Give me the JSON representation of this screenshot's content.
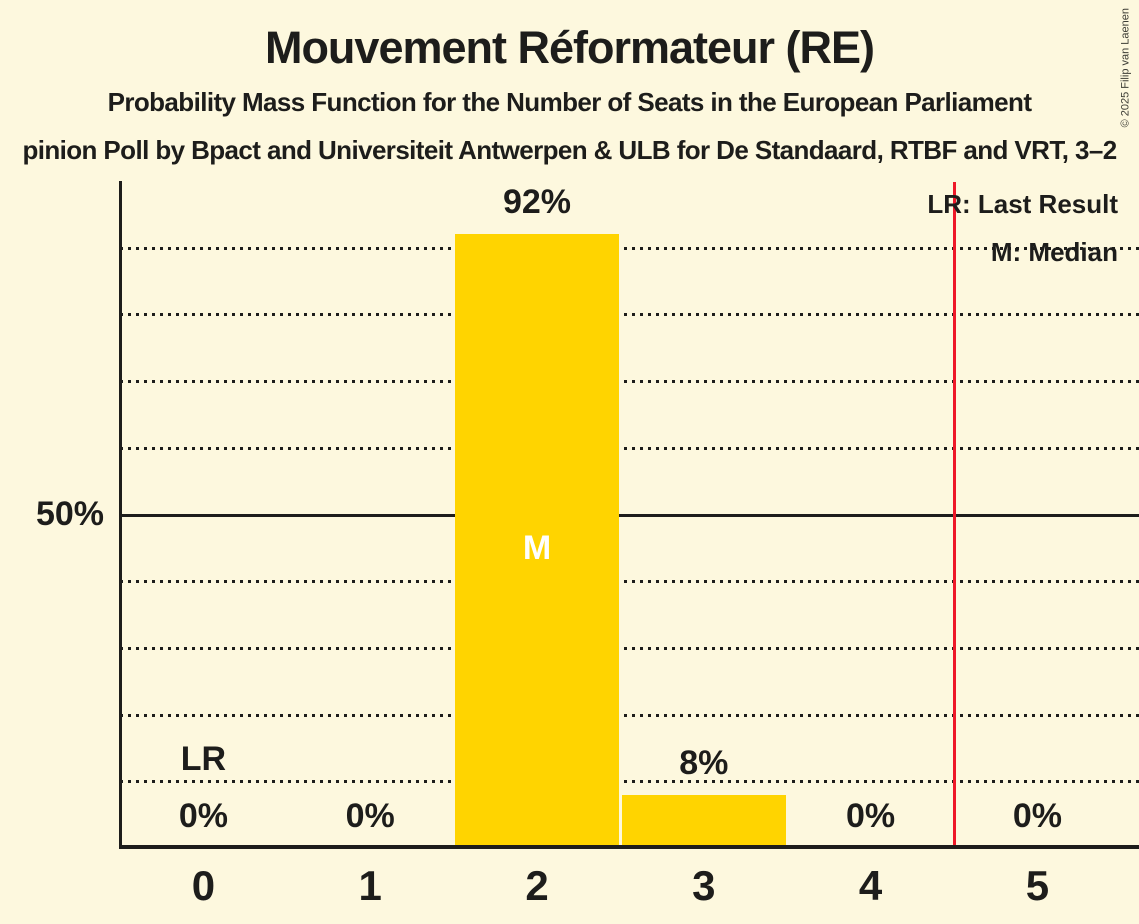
{
  "header": {
    "title": "Mouvement Réformateur (RE)",
    "subtitle": "Probability Mass Function for the Number of Seats in the European Parliament",
    "source_line": "pinion Poll by Bpact and Universiteit Antwerpen & ULB for De Standaard, RTBF and VRT, 3–2",
    "copyright": "© 2025 Filip van Laenen"
  },
  "legend": {
    "lr": "LR: Last Result",
    "median": "M: Median"
  },
  "colors": {
    "background": "#fdf8de",
    "bar": "#ffd400",
    "last_result_line": "#ee1828",
    "text": "#1d1d1b",
    "median_text": "#ffffff",
    "copyright_text": "#3c3c34"
  },
  "chart_data": {
    "type": "bar",
    "title": "Mouvement Réformateur (RE)",
    "categories": [
      "0",
      "1",
      "2",
      "3",
      "4",
      "5"
    ],
    "values": [
      0,
      0,
      92,
      8,
      0,
      0
    ],
    "bar_labels": [
      "0%",
      "0%",
      "92%",
      "8%",
      "0%",
      "0%"
    ],
    "xlabel": "",
    "ylabel": "",
    "ylim": [
      0,
      100
    ],
    "y_solid_line_pct": 50,
    "y_solid_line_label": "50%",
    "y_dotted_gridlines_pct": [
      10,
      20,
      30,
      40,
      60,
      70,
      80,
      90
    ],
    "grid": "horizontal-dotted",
    "median_marker": "M",
    "median_category_index": 2,
    "last_result_marker": "LR",
    "last_result_marker_category_index": 0,
    "last_result_line_x": 4.5,
    "legend_position": "top-right"
  }
}
